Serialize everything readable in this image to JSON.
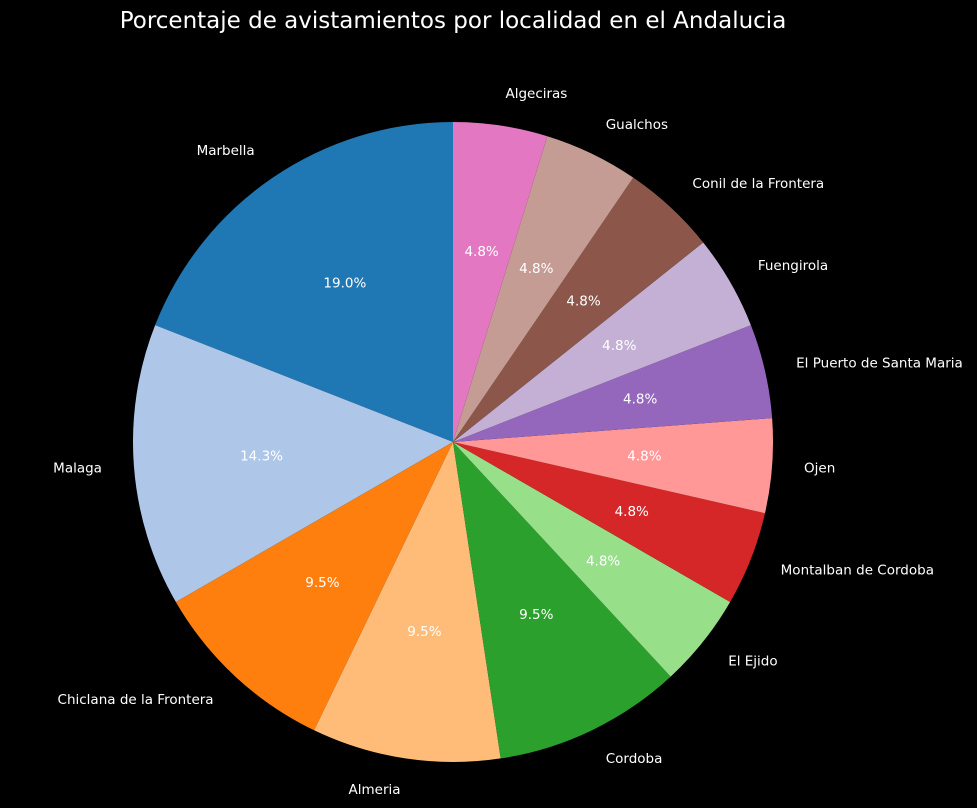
{
  "chart_data": {
    "type": "pie",
    "title": "Porcentaje de avistamientos por localidad en el Andalucia",
    "start_angle_deg": 90,
    "direction": "counterclockwise",
    "categories": [
      "Marbella",
      "Malaga",
      "Chiclana de la Frontera",
      "Almeria",
      "Cordoba",
      "El Ejido",
      "Montalban de Cordoba",
      "Ojen",
      "El Puerto de Santa Maria",
      "Fuengirola",
      "Conil de la Frontera",
      "Gualchos",
      "Algeciras"
    ],
    "values": [
      4,
      3,
      2,
      2,
      2,
      1,
      1,
      1,
      1,
      1,
      1,
      1,
      1
    ],
    "percent_labels": [
      "19.0%",
      "14.3%",
      "9.5%",
      "9.5%",
      "9.5%",
      "4.8%",
      "4.8%",
      "4.8%",
      "4.8%",
      "4.8%",
      "4.8%",
      "4.8%",
      "4.8%"
    ],
    "colors": [
      "#1f77b4",
      "#aec7e8",
      "#ff7f0e",
      "#ffbb78",
      "#2ca02c",
      "#98df8a",
      "#d62728",
      "#ff9896",
      "#9467bd",
      "#c5b0d5",
      "#8c564b",
      "#c49c94",
      "#e377c2"
    ],
    "background": "#000000",
    "text_color": "#ffffff"
  }
}
